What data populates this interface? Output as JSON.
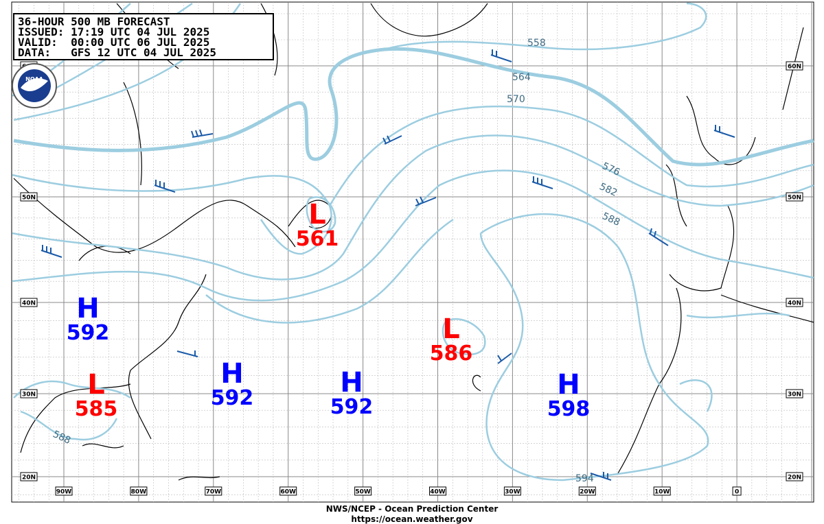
{
  "header": {
    "lines": [
      "36-HOUR 500 MB FORECAST",
      "ISSUED: 17:19 UTC 04 JUL 2025",
      "VALID:  00:00 UTC 06 JUL 2025",
      "DATA:   GFS 12 UTC 04 JUL 2025"
    ]
  },
  "logo": "NOAA",
  "centers": [
    {
      "type": "H",
      "value": "592"
    },
    {
      "type": "L",
      "value": "585"
    },
    {
      "type": "H",
      "value": "592"
    },
    {
      "type": "H",
      "value": "592"
    },
    {
      "type": "L",
      "value": "586"
    },
    {
      "type": "H",
      "value": "598"
    },
    {
      "type": "L",
      "value": "561"
    }
  ],
  "contour_labels": [
    "558",
    "564",
    "570",
    "576",
    "582",
    "588",
    "594",
    "588"
  ],
  "lat_labels": [
    "60N",
    "50N",
    "40N",
    "30N",
    "20N"
  ],
  "lon_labels": [
    "90W",
    "80W",
    "70W",
    "60W",
    "50W",
    "40W",
    "30W",
    "20W",
    "10W",
    "0"
  ],
  "footer": {
    "line1": "NWS/NCEP - Ocean Prediction Center",
    "line2": "https://ocean.weather.gov"
  }
}
